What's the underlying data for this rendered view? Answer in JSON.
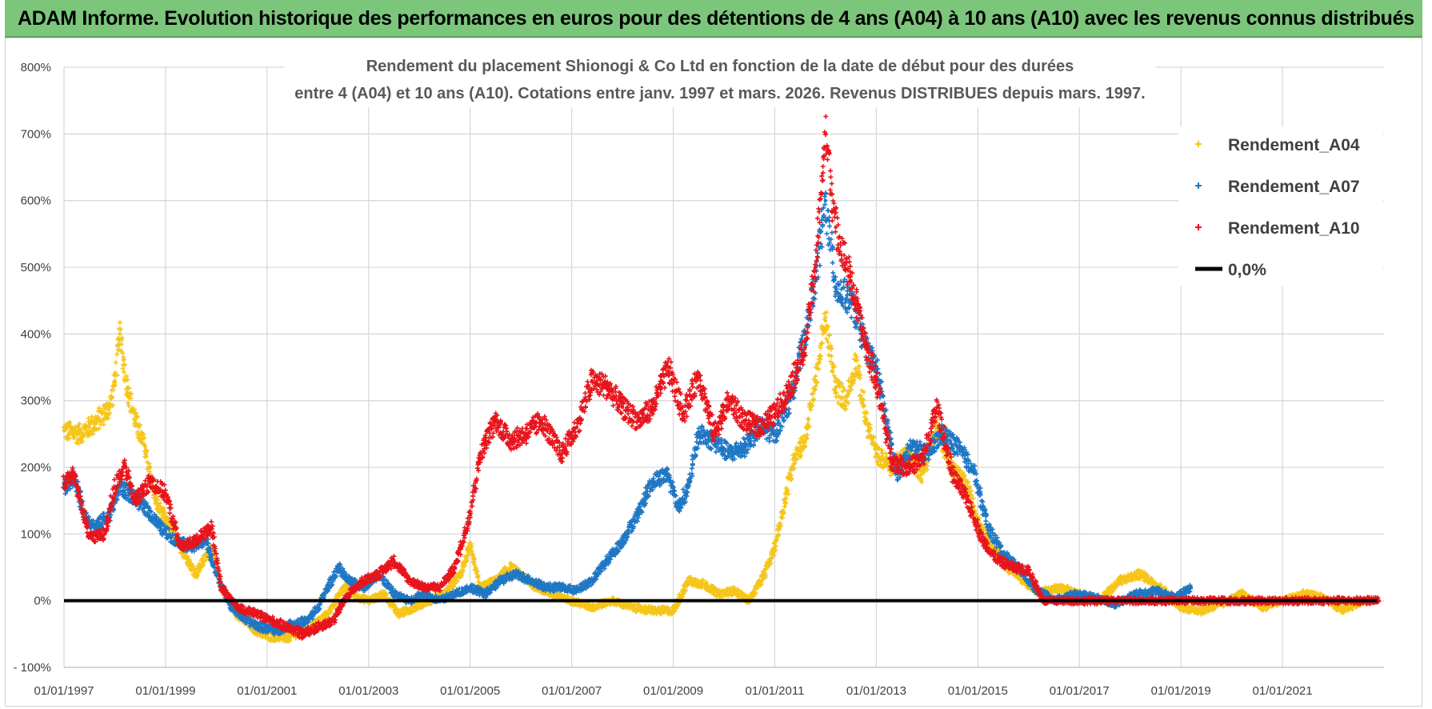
{
  "header": {
    "title": "ADAM Informe. Evolution historique des performances en euros pour des détentions de 4 ans (A04) à 10 ans (A10) avec les revenus connus distribués"
  },
  "chart_data": {
    "type": "scatter",
    "title_line1": "Rendement du placement Shionogi & Co Ltd en fonction de la date de début pour des durées",
    "title_line2": "entre 4 (A04) et 10 ans (A10).  Cotations entre janv. 1997 et mars. 2026. Revenus DISTRIBUES depuis mars. 1997.",
    "xlabel": "",
    "ylabel": "",
    "xlim": [
      1997.0,
      2023.0
    ],
    "ylim": [
      -100,
      800
    ],
    "y_ticks": [
      800,
      700,
      600,
      500,
      400,
      300,
      200,
      100,
      0,
      -100
    ],
    "y_tick_labels": [
      "800%",
      "700%",
      "600%",
      "500%",
      "400%",
      "300%",
      "200%",
      "100%",
      "0%",
      "- 100%"
    ],
    "x_ticks": [
      1997,
      1999,
      2001,
      2003,
      2005,
      2007,
      2009,
      2011,
      2013,
      2015,
      2017,
      2019,
      2021
    ],
    "x_tick_labels": [
      "01/01/1997",
      "01/01/1999",
      "01/01/2001",
      "01/01/2003",
      "01/01/2005",
      "01/01/2007",
      "01/01/2009",
      "01/01/2011",
      "01/01/2013",
      "01/01/2015",
      "01/01/2017",
      "01/01/2019",
      "01/01/2021"
    ],
    "grid": true,
    "legend_position": "top-right",
    "series": [
      {
        "name": "Rendement_A04",
        "color": "#f5c518",
        "points": [
          [
            1997.0,
            255
          ],
          [
            1997.3,
            250
          ],
          [
            1997.6,
            265
          ],
          [
            1997.9,
            290
          ],
          [
            1998.0,
            330
          ],
          [
            1998.1,
            400
          ],
          [
            1998.25,
            320
          ],
          [
            1998.4,
            270
          ],
          [
            1998.6,
            230
          ],
          [
            1998.8,
            150
          ],
          [
            1999.0,
            120
          ],
          [
            1999.3,
            80
          ],
          [
            1999.6,
            40
          ],
          [
            1999.9,
            80
          ],
          [
            2000.1,
            20
          ],
          [
            2000.4,
            -20
          ],
          [
            2000.8,
            -45
          ],
          [
            2001.0,
            -52
          ],
          [
            2001.4,
            -55
          ],
          [
            2001.8,
            -45
          ],
          [
            2002.2,
            -20
          ],
          [
            2002.5,
            20
          ],
          [
            2002.8,
            5
          ],
          [
            2003.0,
            0
          ],
          [
            2003.3,
            10
          ],
          [
            2003.6,
            -20
          ],
          [
            2003.9,
            -10
          ],
          [
            2004.2,
            0
          ],
          [
            2004.5,
            10
          ],
          [
            2004.8,
            40
          ],
          [
            2005.0,
            80
          ],
          [
            2005.2,
            20
          ],
          [
            2005.5,
            30
          ],
          [
            2005.8,
            50
          ],
          [
            2006.2,
            25
          ],
          [
            2006.6,
            10
          ],
          [
            2007.0,
            0
          ],
          [
            2007.4,
            -10
          ],
          [
            2007.8,
            0
          ],
          [
            2008.2,
            -10
          ],
          [
            2008.6,
            -15
          ],
          [
            2009.0,
            -15
          ],
          [
            2009.3,
            30
          ],
          [
            2009.6,
            25
          ],
          [
            2009.9,
            10
          ],
          [
            2010.2,
            15
          ],
          [
            2010.5,
            0
          ],
          [
            2010.8,
            40
          ],
          [
            2011.0,
            80
          ],
          [
            2011.2,
            150
          ],
          [
            2011.4,
            220
          ],
          [
            2011.6,
            240
          ],
          [
            2011.8,
            330
          ],
          [
            2012.0,
            420
          ],
          [
            2012.2,
            320
          ],
          [
            2012.4,
            300
          ],
          [
            2012.6,
            360
          ],
          [
            2012.8,
            270
          ],
          [
            2013.0,
            220
          ],
          [
            2013.3,
            200
          ],
          [
            2013.6,
            220
          ],
          [
            2013.9,
            190
          ],
          [
            2014.2,
            260
          ],
          [
            2014.5,
            200
          ],
          [
            2014.8,
            170
          ],
          [
            2015.0,
            120
          ],
          [
            2015.3,
            80
          ],
          [
            2015.6,
            50
          ],
          [
            2015.9,
            30
          ],
          [
            2016.2,
            10
          ],
          [
            2016.6,
            20
          ],
          [
            2017.0,
            10
          ],
          [
            2017.4,
            0
          ],
          [
            2017.8,
            30
          ],
          [
            2018.2,
            40
          ],
          [
            2018.6,
            20
          ],
          [
            2019.0,
            -10
          ],
          [
            2019.4,
            -15
          ],
          [
            2019.8,
            -5
          ],
          [
            2020.2,
            10
          ],
          [
            2020.6,
            -10
          ],
          [
            2021.0,
            0
          ],
          [
            2021.4,
            10
          ],
          [
            2021.8,
            5
          ],
          [
            2022.2,
            -15
          ],
          [
            2022.6,
            0
          ]
        ]
      },
      {
        "name": "Rendement_A07",
        "color": "#1f77c4",
        "points": [
          [
            1997.0,
            170
          ],
          [
            1997.2,
            185
          ],
          [
            1997.4,
            130
          ],
          [
            1997.6,
            110
          ],
          [
            1997.9,
            130
          ],
          [
            1998.1,
            170
          ],
          [
            1998.3,
            160
          ],
          [
            1998.6,
            140
          ],
          [
            1998.9,
            110
          ],
          [
            1999.2,
            90
          ],
          [
            1999.5,
            80
          ],
          [
            1999.8,
            90
          ],
          [
            2000.0,
            40
          ],
          [
            2000.3,
            -10
          ],
          [
            2000.6,
            -30
          ],
          [
            2000.9,
            -40
          ],
          [
            2001.2,
            -45
          ],
          [
            2001.5,
            -35
          ],
          [
            2001.8,
            -30
          ],
          [
            2002.0,
            -10
          ],
          [
            2002.2,
            20
          ],
          [
            2002.4,
            50
          ],
          [
            2002.6,
            30
          ],
          [
            2002.9,
            20
          ],
          [
            2003.2,
            40
          ],
          [
            2003.5,
            10
          ],
          [
            2003.8,
            0
          ],
          [
            2004.1,
            10
          ],
          [
            2004.4,
            0
          ],
          [
            2004.7,
            10
          ],
          [
            2005.0,
            20
          ],
          [
            2005.3,
            10
          ],
          [
            2005.6,
            30
          ],
          [
            2005.9,
            40
          ],
          [
            2006.2,
            30
          ],
          [
            2006.5,
            20
          ],
          [
            2006.8,
            20
          ],
          [
            2007.1,
            15
          ],
          [
            2007.4,
            30
          ],
          [
            2007.7,
            60
          ],
          [
            2008.0,
            90
          ],
          [
            2008.3,
            130
          ],
          [
            2008.6,
            180
          ],
          [
            2008.9,
            190
          ],
          [
            2009.1,
            140
          ],
          [
            2009.3,
            170
          ],
          [
            2009.5,
            250
          ],
          [
            2009.8,
            240
          ],
          [
            2010.1,
            220
          ],
          [
            2010.4,
            230
          ],
          [
            2010.7,
            260
          ],
          [
            2011.0,
            250
          ],
          [
            2011.3,
            300
          ],
          [
            2011.6,
            400
          ],
          [
            2011.8,
            480
          ],
          [
            2012.0,
            600
          ],
          [
            2012.2,
            470
          ],
          [
            2012.5,
            450
          ],
          [
            2012.8,
            380
          ],
          [
            2013.0,
            350
          ],
          [
            2013.2,
            270
          ],
          [
            2013.4,
            190
          ],
          [
            2013.7,
            230
          ],
          [
            2014.0,
            220
          ],
          [
            2014.3,
            250
          ],
          [
            2014.6,
            230
          ],
          [
            2014.9,
            200
          ],
          [
            2015.2,
            110
          ],
          [
            2015.5,
            70
          ],
          [
            2015.8,
            50
          ],
          [
            2016.1,
            20
          ],
          [
            2016.5,
            0
          ],
          [
            2016.9,
            10
          ],
          [
            2017.3,
            5
          ],
          [
            2017.7,
            -5
          ],
          [
            2018.1,
            10
          ],
          [
            2018.5,
            15
          ],
          [
            2018.9,
            5
          ],
          [
            2019.2,
            20
          ]
        ]
      },
      {
        "name": "Rendement_A10",
        "color": "#e8141c",
        "points": [
          [
            1997.0,
            175
          ],
          [
            1997.2,
            190
          ],
          [
            1997.5,
            95
          ],
          [
            1997.8,
            100
          ],
          [
            1998.0,
            170
          ],
          [
            1998.2,
            200
          ],
          [
            1998.4,
            150
          ],
          [
            1998.7,
            180
          ],
          [
            1999.0,
            160
          ],
          [
            1999.3,
            80
          ],
          [
            1999.6,
            90
          ],
          [
            1999.9,
            110
          ],
          [
            2000.1,
            20
          ],
          [
            2000.4,
            -10
          ],
          [
            2000.8,
            -20
          ],
          [
            2001.1,
            -30
          ],
          [
            2001.4,
            -40
          ],
          [
            2001.7,
            -50
          ],
          [
            2002.0,
            -40
          ],
          [
            2002.3,
            -30
          ],
          [
            2002.6,
            10
          ],
          [
            2002.9,
            30
          ],
          [
            2003.2,
            40
          ],
          [
            2003.5,
            60
          ],
          [
            2003.8,
            30
          ],
          [
            2004.1,
            20
          ],
          [
            2004.4,
            20
          ],
          [
            2004.7,
            50
          ],
          [
            2005.0,
            130
          ],
          [
            2005.2,
            220
          ],
          [
            2005.5,
            270
          ],
          [
            2005.8,
            240
          ],
          [
            2006.1,
            250
          ],
          [
            2006.4,
            270
          ],
          [
            2006.8,
            220
          ],
          [
            2007.1,
            260
          ],
          [
            2007.4,
            330
          ],
          [
            2007.7,
            320
          ],
          [
            2008.0,
            290
          ],
          [
            2008.3,
            270
          ],
          [
            2008.6,
            290
          ],
          [
            2008.9,
            350
          ],
          [
            2009.2,
            280
          ],
          [
            2009.5,
            340
          ],
          [
            2009.8,
            250
          ],
          [
            2010.1,
            300
          ],
          [
            2010.4,
            270
          ],
          [
            2010.7,
            260
          ],
          [
            2011.0,
            280
          ],
          [
            2011.3,
            320
          ],
          [
            2011.6,
            380
          ],
          [
            2011.8,
            500
          ],
          [
            2012.0,
            700
          ],
          [
            2012.2,
            560
          ],
          [
            2012.5,
            480
          ],
          [
            2012.8,
            380
          ],
          [
            2013.0,
            330
          ],
          [
            2013.3,
            210
          ],
          [
            2013.6,
            200
          ],
          [
            2013.9,
            210
          ],
          [
            2014.2,
            290
          ],
          [
            2014.5,
            190
          ],
          [
            2014.8,
            150
          ],
          [
            2015.1,
            90
          ],
          [
            2015.4,
            60
          ],
          [
            2015.7,
            50
          ],
          [
            2016.0,
            45
          ],
          [
            2016.3,
            0
          ],
          [
            2016.8,
            0
          ],
          [
            2017.3,
            0
          ],
          [
            2017.8,
            0
          ],
          [
            2018.3,
            0
          ],
          [
            2018.8,
            0
          ],
          [
            2019.3,
            0
          ],
          [
            2019.8,
            0
          ],
          [
            2020.3,
            0
          ],
          [
            2020.8,
            0
          ],
          [
            2021.3,
            0
          ],
          [
            2021.8,
            0
          ],
          [
            2022.3,
            0
          ],
          [
            2022.9,
            0
          ]
        ]
      }
    ],
    "reference_line": {
      "name": "0,0%",
      "value": 0,
      "color": "#000000"
    }
  }
}
